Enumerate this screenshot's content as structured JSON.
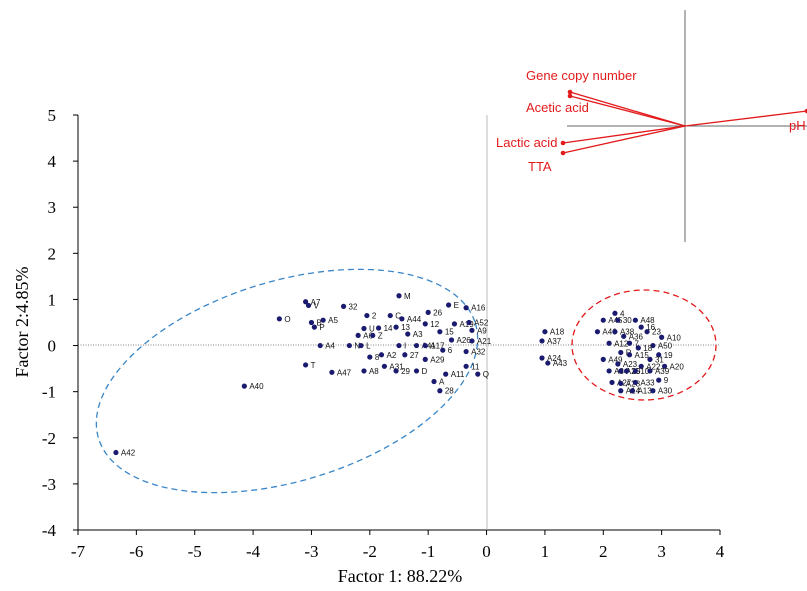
{
  "chart_data": {
    "type": "scatter",
    "xlabel": "Factor 1: 88.22%",
    "ylabel": "Factor 2:4.85%",
    "xlim": [
      -7,
      4
    ],
    "ylim": [
      -4,
      5
    ],
    "xticks": [
      "-7",
      "-6",
      "-5",
      "-4",
      "-3",
      "-2",
      "-1",
      "0",
      "1",
      "2",
      "3",
      "4"
    ],
    "yticks": [
      "5",
      "4",
      "3",
      "2",
      "1",
      "0",
      "-1",
      "-2",
      "-3",
      "-4"
    ],
    "point_color": "#1a1a6e",
    "series": [
      {
        "points": [
          {
            "label": "A7",
            "x": -3.1,
            "y": 0.95
          },
          {
            "label": "V",
            "x": -3.05,
            "y": 0.87
          },
          {
            "label": "32",
            "x": -2.45,
            "y": 0.85
          },
          {
            "label": "O",
            "x": -3.55,
            "y": 0.58
          },
          {
            "label": "B",
            "x": -3.0,
            "y": 0.5
          },
          {
            "label": "A5",
            "x": -2.8,
            "y": 0.55
          },
          {
            "label": "P",
            "x": -2.95,
            "y": 0.4
          },
          {
            "label": "M",
            "x": -1.5,
            "y": 1.08
          },
          {
            "label": "E",
            "x": -0.65,
            "y": 0.88
          },
          {
            "label": "A16",
            "x": -0.35,
            "y": 0.82
          },
          {
            "label": "26",
            "x": -1.0,
            "y": 0.72
          },
          {
            "label": "2",
            "x": -2.05,
            "y": 0.65
          },
          {
            "label": "C",
            "x": -1.65,
            "y": 0.65
          },
          {
            "label": "A44",
            "x": -1.45,
            "y": 0.58
          },
          {
            "label": "12",
            "x": -1.05,
            "y": 0.47
          },
          {
            "label": "A19",
            "x": -0.55,
            "y": 0.47
          },
          {
            "label": "A52",
            "x": -0.3,
            "y": 0.5
          },
          {
            "label": "A9",
            "x": -0.25,
            "y": 0.33
          },
          {
            "label": "U",
            "x": -2.1,
            "y": 0.37
          },
          {
            "label": "14",
            "x": -1.85,
            "y": 0.38
          },
          {
            "label": "13",
            "x": -1.55,
            "y": 0.4
          },
          {
            "label": "A6",
            "x": -2.2,
            "y": 0.22
          },
          {
            "label": "Z",
            "x": -1.95,
            "y": 0.22
          },
          {
            "label": "A3",
            "x": -1.35,
            "y": 0.25
          },
          {
            "label": "15",
            "x": -0.8,
            "y": 0.3
          },
          {
            "label": "A26",
            "x": -0.6,
            "y": 0.12
          },
          {
            "label": "A21",
            "x": -0.25,
            "y": 0.1
          },
          {
            "label": "A4",
            "x": -2.85,
            "y": 0.0
          },
          {
            "label": "N",
            "x": -2.35,
            "y": 0.0
          },
          {
            "label": "L",
            "x": -2.15,
            "y": 0.0
          },
          {
            "label": "I",
            "x": -1.5,
            "y": 0.0
          },
          {
            "label": "A41",
            "x": -1.2,
            "y": 0.0
          },
          {
            "label": "A17",
            "x": -1.05,
            "y": 0.0
          },
          {
            "label": "6",
            "x": -0.75,
            "y": -0.1
          },
          {
            "label": "A32",
            "x": -0.35,
            "y": -0.13
          },
          {
            "label": "8",
            "x": -2.0,
            "y": -0.25
          },
          {
            "label": "A2",
            "x": -1.8,
            "y": -0.2
          },
          {
            "label": "27",
            "x": -1.4,
            "y": -0.2
          },
          {
            "label": "A29",
            "x": -1.05,
            "y": -0.3
          },
          {
            "label": "11",
            "x": -0.35,
            "y": -0.45
          },
          {
            "label": "T",
            "x": -3.1,
            "y": -0.42
          },
          {
            "label": "A47",
            "x": -2.65,
            "y": -0.58
          },
          {
            "label": "A8",
            "x": -2.1,
            "y": -0.55
          },
          {
            "label": "A31",
            "x": -1.75,
            "y": -0.45
          },
          {
            "label": "29",
            "x": -1.55,
            "y": -0.55
          },
          {
            "label": "D",
            "x": -1.2,
            "y": -0.55
          },
          {
            "label": "A11",
            "x": -0.7,
            "y": -0.62
          },
          {
            "label": "A",
            "x": -0.9,
            "y": -0.78
          },
          {
            "label": "Q",
            "x": -0.15,
            "y": -0.62
          },
          {
            "label": "28",
            "x": -0.8,
            "y": -0.98
          },
          {
            "label": "A40",
            "x": -4.15,
            "y": -0.88
          },
          {
            "label": "A42",
            "x": -6.35,
            "y": -2.32
          },
          {
            "label": "A18",
            "x": 1.0,
            "y": 0.3
          },
          {
            "label": "A37",
            "x": 0.95,
            "y": 0.1
          },
          {
            "label": "A24",
            "x": 0.95,
            "y": -0.27
          },
          {
            "label": "A43",
            "x": 1.05,
            "y": -0.38
          },
          {
            "label": "4",
            "x": 2.2,
            "y": 0.7
          },
          {
            "label": "A45",
            "x": 2.0,
            "y": 0.55
          },
          {
            "label": "30",
            "x": 2.25,
            "y": 0.55
          },
          {
            "label": "A48",
            "x": 2.55,
            "y": 0.55
          },
          {
            "label": "16",
            "x": 2.65,
            "y": 0.4
          },
          {
            "label": "A46",
            "x": 1.9,
            "y": 0.3
          },
          {
            "label": "A38",
            "x": 2.2,
            "y": 0.3
          },
          {
            "label": "23",
            "x": 2.75,
            "y": 0.3
          },
          {
            "label": "A36",
            "x": 2.35,
            "y": 0.2
          },
          {
            "label": "A10",
            "x": 3.0,
            "y": 0.18
          },
          {
            "label": "A12",
            "x": 2.1,
            "y": 0.05
          },
          {
            "label": "7",
            "x": 2.45,
            "y": 0.05
          },
          {
            "label": "A50",
            "x": 2.85,
            "y": 0.0
          },
          {
            "label": "18",
            "x": 2.6,
            "y": -0.05
          },
          {
            "label": "R",
            "x": 2.3,
            "y": -0.15
          },
          {
            "label": "A15",
            "x": 2.45,
            "y": -0.2
          },
          {
            "label": "A49",
            "x": 2.0,
            "y": -0.3
          },
          {
            "label": "19",
            "x": 2.95,
            "y": -0.2
          },
          {
            "label": "31",
            "x": 2.8,
            "y": -0.3
          },
          {
            "label": "A23",
            "x": 2.25,
            "y": -0.4
          },
          {
            "label": "A22",
            "x": 2.65,
            "y": -0.45
          },
          {
            "label": "A20",
            "x": 3.05,
            "y": -0.45
          },
          {
            "label": "A34",
            "x": 2.1,
            "y": -0.55
          },
          {
            "label": "A25",
            "x": 2.3,
            "y": -0.55
          },
          {
            "label": "20",
            "x": 2.4,
            "y": -0.55
          },
          {
            "label": "10",
            "x": 2.55,
            "y": -0.55
          },
          {
            "label": "A39",
            "x": 2.8,
            "y": -0.55
          },
          {
            "label": "A27",
            "x": 2.15,
            "y": -0.8
          },
          {
            "label": "A28",
            "x": 2.3,
            "y": -0.82
          },
          {
            "label": "A33",
            "x": 2.55,
            "y": -0.8
          },
          {
            "label": "9",
            "x": 2.95,
            "y": -0.75
          },
          {
            "label": "A14",
            "x": 2.3,
            "y": -0.98
          },
          {
            "label": "A13",
            "x": 2.5,
            "y": -0.98
          },
          {
            "label": "A30",
            "x": 2.85,
            "y": -0.98
          }
        ]
      }
    ],
    "vector_color": "#e31a1c",
    "vectors": [
      {
        "label": "Gene copy number"
      },
      {
        "label": "Acetic acid"
      },
      {
        "label": "Lactic acid"
      },
      {
        "label": "TTA"
      },
      {
        "label": "pH"
      }
    ]
  }
}
